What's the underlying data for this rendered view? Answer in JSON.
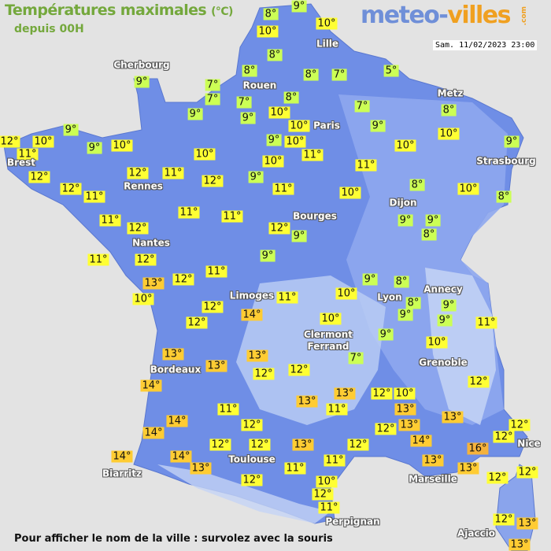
{
  "header": {
    "title": "Températures maximales",
    "unit": "(°C)",
    "subtitle": "depuis 00H",
    "date": "Sam. 11/02/2023 23:00"
  },
  "logo": {
    "part1": "meteo-",
    "part2": "villes",
    "suffix": ".com"
  },
  "footer": "Pour afficher le nom de la ville : survolez avec la souris",
  "colors": {
    "background": "#e3e3e3",
    "land": "#6f8ee6",
    "highland": "#a9bff0",
    "cold": "#ccff55",
    "mild": "#ffff33",
    "warm": "#ffcc33",
    "hot": "#f5b23c"
  },
  "cities": [
    "Cherbourg",
    "Lille",
    "Rouen",
    "Paris",
    "Metz",
    "Strasbourg",
    "Brest",
    "Rennes",
    "Dijon",
    "Bourges",
    "Nantes",
    "Annecy",
    "Limoges",
    "Lyon",
    "Clermont Ferrand",
    "Grenoble",
    "Bordeaux",
    "Toulouse",
    "Biarritz",
    "Marseille",
    "Nice",
    "Perpignan",
    "Ajaccio"
  ],
  "temperatures": [
    8,
    9,
    10,
    10,
    8,
    8,
    8,
    7,
    5,
    9,
    7,
    7,
    7,
    8,
    9,
    9,
    10,
    7,
    8,
    10,
    9,
    10,
    9,
    12,
    11,
    10,
    9,
    10,
    9,
    10,
    11,
    10,
    9,
    10,
    10,
    11,
    12,
    12,
    11,
    12,
    9,
    11,
    12,
    11,
    10,
    8,
    10,
    8,
    11,
    11,
    11,
    12,
    9,
    9,
    9,
    8,
    12,
    11,
    12,
    9,
    13,
    12,
    11,
    10,
    12,
    9,
    8,
    11,
    10,
    8,
    9,
    9,
    9,
    14,
    12,
    10,
    11,
    9,
    10,
    13,
    13,
    7,
    13,
    12,
    12,
    14,
    12,
    13,
    12,
    10,
    13,
    11,
    13,
    13,
    11,
    14,
    12,
    13,
    12,
    12,
    14,
    12,
    12,
    12,
    13,
    12,
    14,
    16,
    14,
    14,
    13,
    11,
    13,
    13,
    11,
    12,
    12,
    12,
    10,
    12,
    11,
    12,
    13,
    13
  ],
  "unit_symbol": "°"
}
